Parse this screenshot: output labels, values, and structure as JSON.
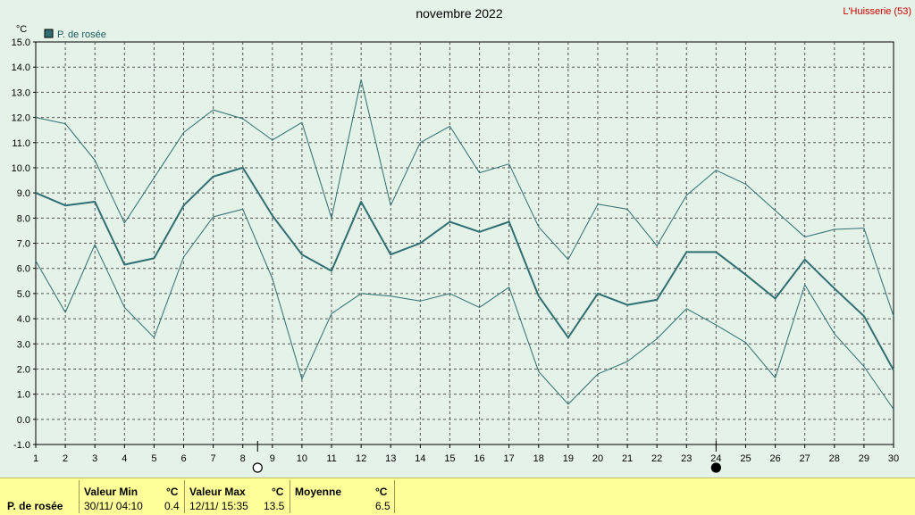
{
  "station": "L'Huisserie (53)",
  "footer": {
    "series_label": "P. de rosée",
    "min_header": "Valeur Min",
    "min_unit": "°C",
    "min_date": "30/11/  04:10",
    "min_value": "0.4",
    "max_header": "Valeur Max",
    "max_unit": "°C",
    "max_date": "12/11/  15:35",
    "max_value": "13.5",
    "avg_header": "Moyenne",
    "avg_unit": "°C",
    "avg_value": "6.5"
  },
  "moon_icons": [
    "full-moon-icon",
    "new-moon-icon"
  ],
  "chart_data": {
    "type": "line",
    "title": "novembre 2022",
    "ylabel": "°C",
    "ylim": [
      -1.0,
      15.0
    ],
    "yticks": [
      "-1.0",
      "0.0",
      "1.0",
      "2.0",
      "3.0",
      "4.0",
      "5.0",
      "6.0",
      "7.0",
      "8.0",
      "9.0",
      "10.0",
      "11.0",
      "12.0",
      "13.0",
      "14.0",
      "15.0"
    ],
    "x": [
      1,
      2,
      3,
      4,
      5,
      6,
      7,
      8,
      9,
      10,
      11,
      12,
      13,
      14,
      15,
      16,
      17,
      18,
      19,
      20,
      21,
      22,
      23,
      24,
      25,
      26,
      27,
      28,
      29,
      30
    ],
    "legend": "top-left",
    "grid": true,
    "colors": {
      "line": "#2f6f73",
      "grid": "#555555",
      "plot_bg": "#e4f2e7"
    },
    "moon_markers": [
      {
        "x": 8.5,
        "phase": "full"
      },
      {
        "x": 24,
        "phase": "new"
      }
    ],
    "series": [
      {
        "name": "P. de rosée",
        "role": "mean",
        "values": [
          9.0,
          8.5,
          8.65,
          6.15,
          6.4,
          8.5,
          9.65,
          10.0,
          8.1,
          6.55,
          5.9,
          8.65,
          6.55,
          7.0,
          7.85,
          7.45,
          7.85,
          4.9,
          3.25,
          5.0,
          4.55,
          4.75,
          6.65,
          6.65,
          5.75,
          4.8,
          6.35,
          5.2,
          4.1,
          1.95
        ]
      },
      {
        "role": "max",
        "values": [
          12.0,
          11.75,
          10.3,
          7.8,
          9.6,
          11.4,
          12.3,
          11.95,
          11.1,
          11.8,
          8.0,
          13.5,
          8.5,
          11.0,
          11.65,
          9.8,
          10.15,
          7.65,
          6.35,
          8.55,
          8.35,
          6.9,
          8.9,
          9.9,
          9.35,
          8.3,
          7.25,
          7.55,
          7.6,
          4.1
        ]
      },
      {
        "role": "min",
        "values": [
          6.3,
          4.25,
          6.95,
          4.45,
          3.25,
          6.45,
          8.05,
          8.35,
          5.6,
          1.6,
          4.2,
          5.0,
          4.9,
          4.7,
          5.0,
          4.45,
          5.25,
          1.9,
          0.6,
          1.8,
          2.3,
          3.2,
          4.4,
          3.75,
          3.05,
          1.65,
          5.35,
          3.4,
          2.1,
          0.4
        ]
      }
    ]
  }
}
